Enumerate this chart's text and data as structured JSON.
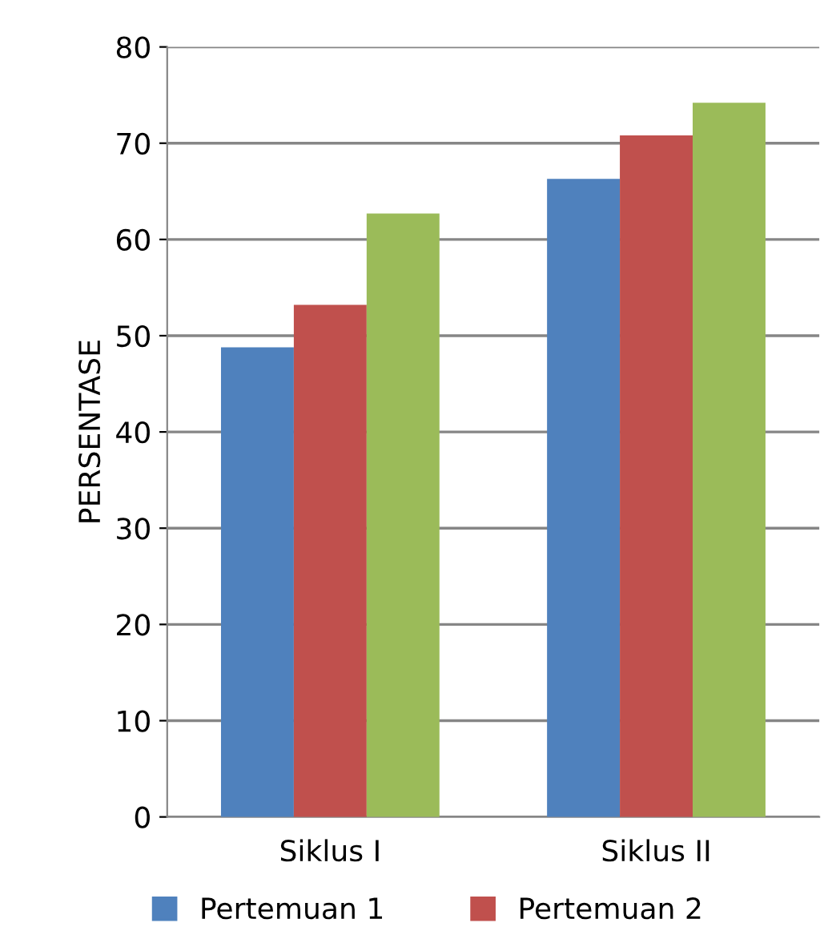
{
  "chart_data": {
    "type": "bar",
    "ylabel": "PERSENTASE",
    "categories": [
      "Siklus I",
      "Siklus II"
    ],
    "series": [
      {
        "name": "Pertemuan 1",
        "color": "#4f81bd",
        "values": [
          48.8,
          66.3
        ]
      },
      {
        "name": "Pertemuan 2",
        "color": "#c0504d",
        "values": [
          53.2,
          70.8
        ]
      },
      {
        "color": "#9bbb59",
        "values": [
          62.7,
          74.2
        ]
      }
    ],
    "ylim": [
      0,
      80
    ],
    "yticks": [
      0,
      10,
      20,
      30,
      40,
      50,
      60,
      70,
      80
    ],
    "grid": "y",
    "legend": "bottom"
  }
}
